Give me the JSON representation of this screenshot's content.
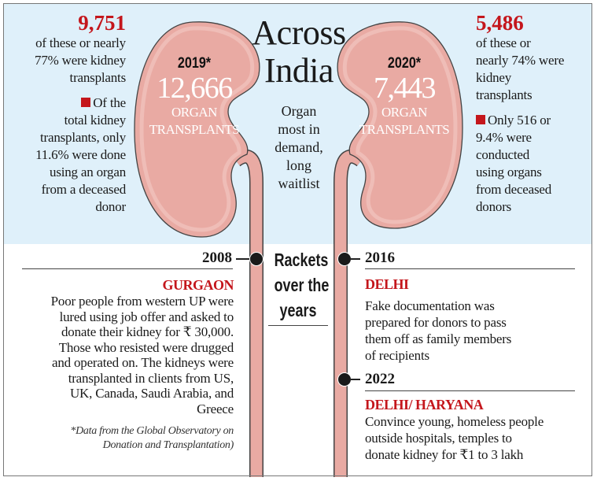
{
  "colors": {
    "background_top": "#dff0fa",
    "kidney": "#e9aaa3",
    "accent_red": "#c4161c"
  },
  "title": {
    "line1": "Across",
    "line2": "India"
  },
  "subtitle": [
    "Organ",
    "most in",
    "demand,",
    "long",
    "waitlist"
  ],
  "left": {
    "kidney": {
      "year": "2019*",
      "count": "12,666",
      "label1": "ORGAN",
      "label2": "TRANSPLANTS"
    },
    "stat_number": "9,751",
    "stat_lines": [
      "of these or nearly",
      "77% were kidney",
      "transplants"
    ],
    "note_lines": [
      "Of the",
      "total kidney",
      "transplants, only",
      "11.6% were done",
      "using an organ",
      "from a deceased",
      "donor"
    ]
  },
  "right": {
    "kidney": {
      "year": "2020*",
      "count": "7,443",
      "label1": "ORGAN",
      "label2": "TRANSPLANTS"
    },
    "stat_number": "5,486",
    "stat_lines": [
      "of these or",
      "nearly 74% were",
      "kidney",
      "transplants"
    ],
    "note_lines": [
      "Only 516 or",
      "9.4% were",
      "conducted",
      "using organs",
      "from deceased",
      "donors"
    ]
  },
  "rackets_heading": [
    "Rackets",
    "over the",
    "years"
  ],
  "timeline": [
    {
      "year": "2008",
      "place": "GURGAON",
      "lines": [
        "Poor people from western UP were",
        "lured using job offer and asked to",
        "donate their kidney for ₹ 30,000.",
        "Those who resisted were drugged",
        "and operated on. The kidneys were",
        "transplanted in clients from US,",
        "UK, Canada, Saudi Arabia, and",
        "Greece"
      ]
    },
    {
      "year": "2016",
      "place": "DELHI",
      "lines": [
        "Fake documentation was",
        "prepared for donors to pass",
        "them off as family members",
        "of recipients"
      ]
    },
    {
      "year": "2022",
      "place": "DELHI/ HARYANA",
      "lines": [
        "Convince young, homeless people",
        "outside hospitals, temples to",
        "donate kidney for ₹1 to 3 lakh"
      ]
    }
  ],
  "footnote": [
    "*Data from the Global Observatory on",
    "Donation and Transplantation)"
  ]
}
